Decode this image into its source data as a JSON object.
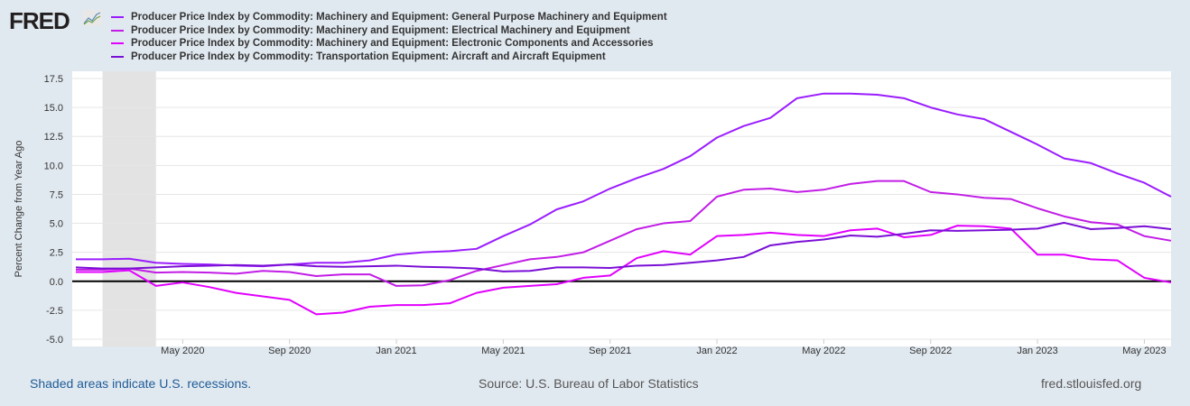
{
  "header": {
    "logo": "FRED"
  },
  "chart_data": {
    "type": "line",
    "title": "",
    "ylabel": "Percent Change from Year Ago",
    "xlabel": "",
    "ylim": [
      -5,
      17.5
    ],
    "yticks": [
      "17.5",
      "15.0",
      "12.5",
      "10.0",
      "7.5",
      "5.0",
      "2.5",
      "0.0",
      "-2.5",
      "-5.0"
    ],
    "xticks": [
      {
        "label": "May 2020",
        "index": 4
      },
      {
        "label": "Sep 2020",
        "index": 8
      },
      {
        "label": "Jan 2021",
        "index": 12
      },
      {
        "label": "May 2021",
        "index": 16
      },
      {
        "label": "Sep 2021",
        "index": 20
      },
      {
        "label": "Jan 2022",
        "index": 24
      },
      {
        "label": "May 2022",
        "index": 28
      },
      {
        "label": "Sep 2022",
        "index": 32
      },
      {
        "label": "Jan 2023",
        "index": 36
      },
      {
        "label": "May 2023",
        "index": 40
      }
    ],
    "x_start": "Jan 2020",
    "x_end": "Jun 2023",
    "frequency": "monthly",
    "grid": true,
    "recession": {
      "start_index": 1,
      "end_index": 3
    },
    "series": [
      {
        "name": "Producer Price Index by Commodity: Machinery and Equipment: General Purpose Machinery and Equipment",
        "color": "#9b1dff",
        "values": [
          1.9,
          1.9,
          1.95,
          1.6,
          1.5,
          1.45,
          1.35,
          1.3,
          1.45,
          1.6,
          1.6,
          1.8,
          2.3,
          2.5,
          2.6,
          2.8,
          3.9,
          4.9,
          6.2,
          6.9,
          8.0,
          8.9,
          9.7,
          10.8,
          12.4,
          13.4,
          14.1,
          15.8,
          16.2,
          16.2,
          16.1,
          15.8,
          15.0,
          14.4,
          14.0,
          12.9,
          11.8,
          10.6,
          10.2,
          9.3,
          8.5,
          7.3
        ]
      },
      {
        "name": "Producer Price Index by Commodity: Machinery and Equipment: Electrical Machinery and Equipment",
        "color": "#c21de6",
        "values": [
          1.0,
          1.0,
          1.1,
          0.75,
          0.8,
          0.75,
          0.65,
          0.9,
          0.8,
          0.45,
          0.6,
          0.6,
          -0.4,
          -0.35,
          0.1,
          0.9,
          1.4,
          1.9,
          2.1,
          2.5,
          3.5,
          4.5,
          5.0,
          5.2,
          7.3,
          7.9,
          8.0,
          7.7,
          7.9,
          8.4,
          8.65,
          8.65,
          7.7,
          7.5,
          7.2,
          7.1,
          6.3,
          5.6,
          5.1,
          4.9,
          3.9,
          3.5
        ]
      },
      {
        "name": "Producer Price Index by Commodity: Machinery and Equipment: Electronic Components and Accessories",
        "color": "#e100ff",
        "values": [
          0.8,
          0.8,
          0.95,
          -0.4,
          -0.1,
          -0.5,
          -1.0,
          -1.3,
          -1.6,
          -2.85,
          -2.7,
          -2.2,
          -2.05,
          -2.05,
          -1.9,
          -1.0,
          -0.55,
          -0.4,
          -0.25,
          0.3,
          0.5,
          2.0,
          2.6,
          2.3,
          3.9,
          4.0,
          4.2,
          4.0,
          3.9,
          4.4,
          4.55,
          3.8,
          4.0,
          4.8,
          4.75,
          4.55,
          2.3,
          2.3,
          1.9,
          1.8,
          0.3,
          -0.1
        ]
      },
      {
        "name": "Producer Price Index by Commodity: Transportation Equipment: Aircraft and Aircraft Equipment",
        "color": "#7a0fd6",
        "values": [
          1.2,
          1.1,
          1.1,
          1.2,
          1.3,
          1.35,
          1.4,
          1.35,
          1.45,
          1.3,
          1.25,
          1.3,
          1.35,
          1.25,
          1.2,
          1.1,
          0.85,
          0.9,
          1.2,
          1.2,
          1.15,
          1.35,
          1.4,
          1.6,
          1.8,
          2.1,
          3.1,
          3.4,
          3.6,
          3.95,
          3.85,
          4.1,
          4.4,
          4.35,
          4.4,
          4.45,
          4.55,
          5.05,
          4.5,
          4.6,
          4.75,
          4.5
        ]
      }
    ]
  },
  "footer": {
    "recession_note": "Shaded areas indicate U.S. recessions.",
    "source": "Source: U.S. Bureau of Labor Statistics",
    "site": "fred.stlouisfed.org"
  }
}
